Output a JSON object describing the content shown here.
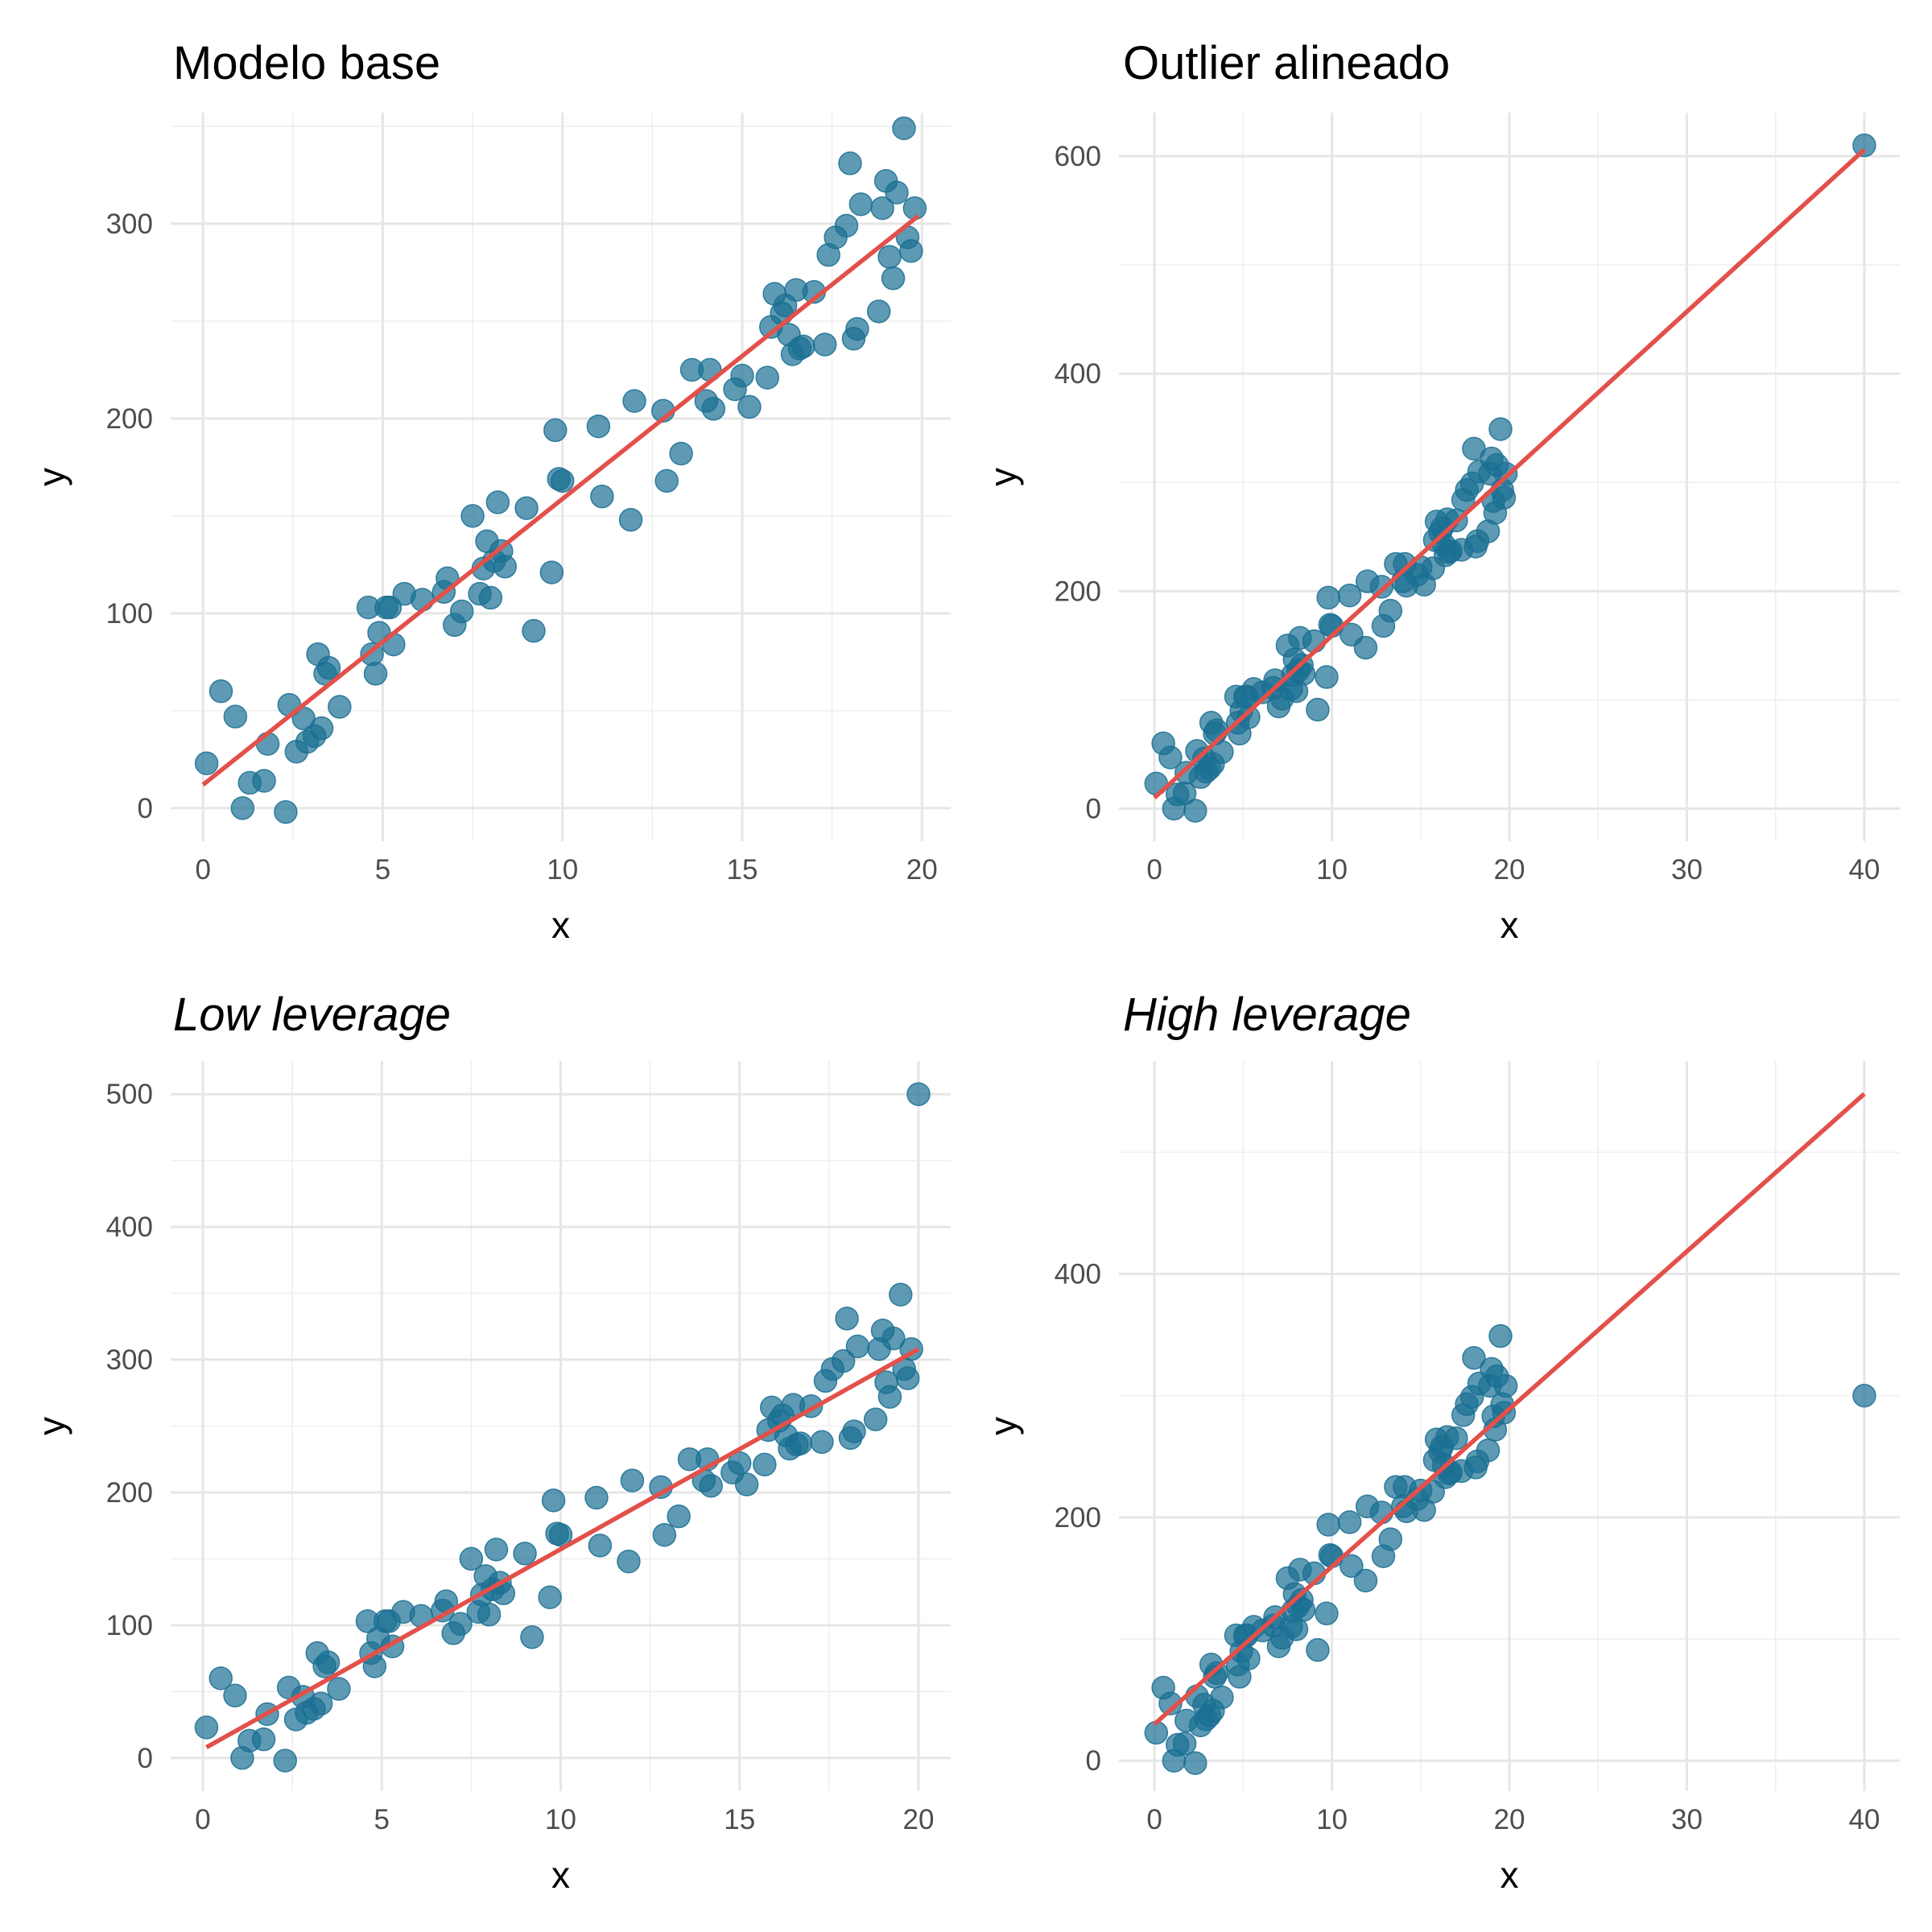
{
  "colors": {
    "points": "#1a6f93",
    "fit_line": "#e3504a",
    "grid": "#e6e6e6"
  },
  "chart_data": [
    {
      "type": "scatter",
      "title": "Modelo base",
      "title_style": "normal",
      "xlabel": "x",
      "ylabel": "y",
      "xlim": [
        -0.9,
        20.8
      ],
      "ylim": [
        -17,
        357
      ],
      "xticks": [
        0,
        5,
        10,
        15,
        20
      ],
      "yticks": [
        0,
        100,
        200,
        300
      ],
      "grid": true,
      "series": [
        {
          "x": [
            0.1,
            0.5,
            0.9,
            1.1,
            1.3,
            1.7,
            1.8,
            2.3,
            2.4,
            2.6,
            2.8,
            2.9,
            3.1,
            3.2,
            3.3,
            3.4,
            3.5,
            3.8,
            4.6,
            4.7,
            4.8,
            4.9,
            5.1,
            5.2,
            5.3,
            5.6,
            6.1,
            6.7,
            6.8,
            7.0,
            7.2,
            7.5,
            7.7,
            7.8,
            7.9,
            8.0,
            8.1,
            8.2,
            8.3,
            8.4,
            9.0,
            9.2,
            9.7,
            9.8,
            9.9,
            10.0,
            11.1,
            11.0,
            11.9,
            12.0,
            12.8,
            12.9,
            13.3,
            13.6,
            14.0,
            14.1,
            14.2,
            14.8,
            15.0,
            15.2,
            15.7,
            15.8,
            15.9,
            16.1,
            16.2,
            16.3,
            16.4,
            16.5,
            16.6,
            16.7,
            17.0,
            17.3,
            17.4,
            17.6,
            17.9,
            18.0,
            18.1,
            18.2,
            18.3,
            18.8,
            18.9,
            19.0,
            19.1,
            19.2,
            19.3,
            19.5,
            19.6,
            19.7,
            19.8
          ],
          "y": [
            23,
            60,
            47,
            0,
            13,
            14,
            33,
            -2,
            53,
            29,
            46,
            34,
            37,
            79,
            41,
            69,
            72,
            52,
            103,
            79,
            69,
            90,
            103,
            103,
            84,
            110,
            107,
            111,
            118,
            94,
            101,
            150,
            110,
            123,
            137,
            108,
            127,
            157,
            132,
            124,
            154,
            91,
            121,
            194,
            169,
            168,
            160,
            196,
            148,
            209,
            204,
            168,
            182,
            225,
            209,
            225,
            205,
            215,
            222,
            206,
            221,
            247,
            264,
            254,
            258,
            243,
            233,
            266,
            236,
            237,
            265,
            238,
            284,
            293,
            299,
            331,
            241,
            246,
            310,
            255,
            308,
            322,
            283,
            272,
            316,
            349,
            293,
            286,
            308
          ],
          "marker": "circle"
        }
      ],
      "fit_line": {
        "x": [
          0,
          19.9
        ],
        "y": [
          12,
          304
        ]
      }
    },
    {
      "type": "scatter",
      "title": "Outlier alineado",
      "title_style": "normal",
      "xlabel": "x",
      "ylabel": "y",
      "xlim": [
        -2,
        42
      ],
      "ylim": [
        -30,
        640
      ],
      "xticks": [
        0,
        10,
        20,
        30,
        40
      ],
      "yticks": [
        0,
        200,
        400,
        600
      ],
      "grid": true,
      "series": [
        {
          "x": [
            0.1,
            0.5,
            0.9,
            1.1,
            1.3,
            1.7,
            1.8,
            2.3,
            2.4,
            2.6,
            2.8,
            2.9,
            3.1,
            3.2,
            3.3,
            3.4,
            3.5,
            3.8,
            4.6,
            4.7,
            4.8,
            4.9,
            5.1,
            5.2,
            5.3,
            5.6,
            6.1,
            6.7,
            6.8,
            7.0,
            7.2,
            7.5,
            7.7,
            7.8,
            7.9,
            8.0,
            8.1,
            8.2,
            8.3,
            8.4,
            9.0,
            9.2,
            9.7,
            9.8,
            9.9,
            10.0,
            11.1,
            11.0,
            11.9,
            12.0,
            12.8,
            12.9,
            13.3,
            13.6,
            14.0,
            14.1,
            14.2,
            14.8,
            15.0,
            15.2,
            15.7,
            15.8,
            15.9,
            16.1,
            16.2,
            16.3,
            16.4,
            16.5,
            16.6,
            16.7,
            17.0,
            17.3,
            17.4,
            17.6,
            17.9,
            18.0,
            18.1,
            18.2,
            18.3,
            18.8,
            18.9,
            19.0,
            19.1,
            19.2,
            19.3,
            19.5,
            19.6,
            19.7,
            19.8,
            40.0
          ],
          "y": [
            23,
            60,
            47,
            0,
            13,
            14,
            33,
            -2,
            53,
            29,
            46,
            34,
            37,
            79,
            41,
            69,
            72,
            52,
            103,
            79,
            69,
            90,
            103,
            103,
            84,
            110,
            107,
            111,
            118,
            94,
            101,
            150,
            110,
            123,
            137,
            108,
            127,
            157,
            132,
            124,
            154,
            91,
            121,
            194,
            169,
            168,
            160,
            196,
            148,
            209,
            204,
            168,
            182,
            225,
            209,
            225,
            205,
            215,
            222,
            206,
            221,
            247,
            264,
            254,
            258,
            243,
            233,
            266,
            236,
            237,
            265,
            238,
            284,
            293,
            299,
            331,
            241,
            246,
            310,
            255,
            308,
            322,
            283,
            272,
            316,
            349,
            293,
            286,
            308,
            610
          ],
          "marker": "circle"
        }
      ],
      "fit_line": {
        "x": [
          0,
          40
        ],
        "y": [
          10,
          606
        ]
      }
    },
    {
      "type": "scatter",
      "title": "Low leverage",
      "title_style": "italic",
      "xlabel": "x",
      "ylabel": "y",
      "xlim": [
        -0.9,
        20.9
      ],
      "ylim": [
        -25,
        525
      ],
      "xticks": [
        0,
        5,
        10,
        15,
        20
      ],
      "yticks": [
        0,
        100,
        200,
        300,
        400,
        500
      ],
      "grid": true,
      "series": [
        {
          "x": [
            0.1,
            0.5,
            0.9,
            1.1,
            1.3,
            1.7,
            1.8,
            2.3,
            2.4,
            2.6,
            2.8,
            2.9,
            3.1,
            3.2,
            3.3,
            3.4,
            3.5,
            3.8,
            4.6,
            4.7,
            4.8,
            4.9,
            5.1,
            5.2,
            5.3,
            5.6,
            6.1,
            6.7,
            6.8,
            7.0,
            7.2,
            7.5,
            7.7,
            7.8,
            7.9,
            8.0,
            8.1,
            8.2,
            8.3,
            8.4,
            9.0,
            9.2,
            9.7,
            9.8,
            9.9,
            10.0,
            11.1,
            11.0,
            11.9,
            12.0,
            12.8,
            12.9,
            13.3,
            13.6,
            14.0,
            14.1,
            14.2,
            14.8,
            15.0,
            15.2,
            15.7,
            15.8,
            15.9,
            16.1,
            16.2,
            16.3,
            16.4,
            16.5,
            16.6,
            16.7,
            17.0,
            17.3,
            17.4,
            17.6,
            17.9,
            18.0,
            18.1,
            18.2,
            18.3,
            18.8,
            18.9,
            19.0,
            19.1,
            19.2,
            19.3,
            19.5,
            19.6,
            19.7,
            19.8,
            20.0
          ],
          "y": [
            23,
            60,
            47,
            0,
            13,
            14,
            33,
            -2,
            53,
            29,
            46,
            34,
            37,
            79,
            41,
            69,
            72,
            52,
            103,
            79,
            69,
            90,
            103,
            103,
            84,
            110,
            107,
            111,
            118,
            94,
            101,
            150,
            110,
            123,
            137,
            108,
            127,
            157,
            132,
            124,
            154,
            91,
            121,
            194,
            169,
            168,
            160,
            196,
            148,
            209,
            204,
            168,
            182,
            225,
            209,
            225,
            205,
            215,
            222,
            206,
            221,
            247,
            264,
            254,
            258,
            243,
            233,
            266,
            236,
            237,
            265,
            238,
            284,
            293,
            299,
            331,
            241,
            246,
            310,
            255,
            308,
            322,
            283,
            272,
            316,
            349,
            293,
            286,
            308,
            500
          ],
          "marker": "circle"
        }
      ],
      "fit_line": {
        "x": [
          0.1,
          20.0
        ],
        "y": [
          8,
          308
        ]
      }
    },
    {
      "type": "scatter",
      "title": "High leverage",
      "title_style": "italic",
      "xlabel": "x",
      "ylabel": "y",
      "xlim": [
        -2,
        42
      ],
      "ylim": [
        -25,
        575
      ],
      "xticks": [
        0,
        10,
        20,
        30,
        40
      ],
      "yticks": [
        0,
        200,
        400
      ],
      "grid": true,
      "series": [
        {
          "x": [
            0.1,
            0.5,
            0.9,
            1.1,
            1.3,
            1.7,
            1.8,
            2.3,
            2.4,
            2.6,
            2.8,
            2.9,
            3.1,
            3.2,
            3.3,
            3.4,
            3.5,
            3.8,
            4.6,
            4.7,
            4.8,
            4.9,
            5.1,
            5.2,
            5.3,
            5.6,
            6.1,
            6.7,
            6.8,
            7.0,
            7.2,
            7.5,
            7.7,
            7.8,
            7.9,
            8.0,
            8.1,
            8.2,
            8.3,
            8.4,
            9.0,
            9.2,
            9.7,
            9.8,
            9.9,
            10.0,
            11.1,
            11.0,
            11.9,
            12.0,
            12.8,
            12.9,
            13.3,
            13.6,
            14.0,
            14.1,
            14.2,
            14.8,
            15.0,
            15.2,
            15.7,
            15.8,
            15.9,
            16.1,
            16.2,
            16.3,
            16.4,
            16.5,
            16.6,
            16.7,
            17.0,
            17.3,
            17.4,
            17.6,
            17.9,
            18.0,
            18.1,
            18.2,
            18.3,
            18.8,
            18.9,
            19.0,
            19.1,
            19.2,
            19.3,
            19.5,
            19.6,
            19.7,
            19.8,
            40.0
          ],
          "y": [
            23,
            60,
            47,
            0,
            13,
            14,
            33,
            -2,
            53,
            29,
            46,
            34,
            37,
            79,
            41,
            69,
            72,
            52,
            103,
            79,
            69,
            90,
            103,
            103,
            84,
            110,
            107,
            111,
            118,
            94,
            101,
            150,
            110,
            123,
            137,
            108,
            127,
            157,
            132,
            124,
            154,
            91,
            121,
            194,
            169,
            168,
            160,
            196,
            148,
            209,
            204,
            168,
            182,
            225,
            209,
            225,
            205,
            215,
            222,
            206,
            221,
            247,
            264,
            254,
            258,
            243,
            233,
            266,
            236,
            237,
            265,
            238,
            284,
            293,
            299,
            331,
            241,
            246,
            310,
            255,
            308,
            322,
            283,
            272,
            316,
            349,
            293,
            286,
            308,
            300
          ],
          "marker": "circle"
        }
      ],
      "fit_line": {
        "x": [
          0,
          40
        ],
        "y": [
          30,
          548
        ]
      }
    }
  ]
}
